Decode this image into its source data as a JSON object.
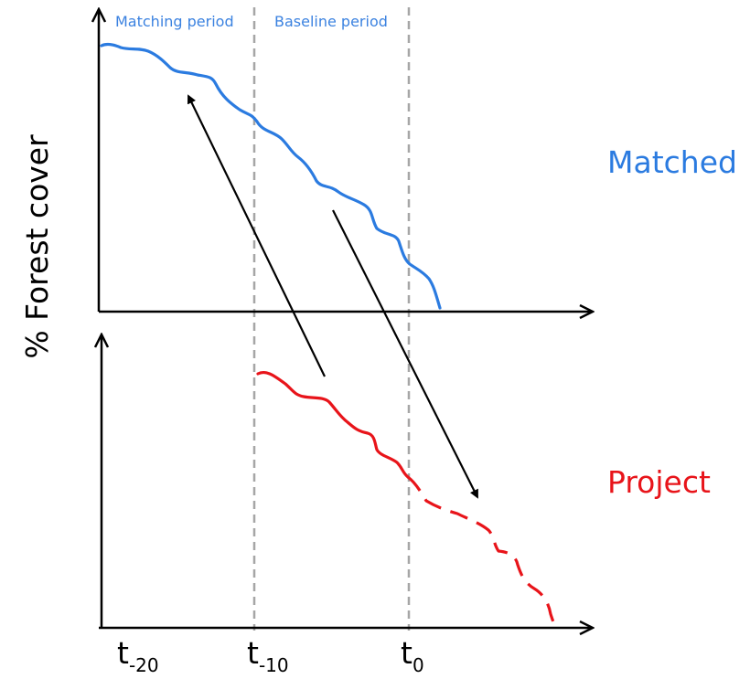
{
  "figure": {
    "y_axis_label": "% Forest cover",
    "period_labels": {
      "matching": "Matching period",
      "baseline": "Baseline period"
    },
    "series": {
      "matched": {
        "label": "Matched",
        "color": "#2b7be0"
      },
      "project": {
        "label": "Project",
        "color": "#e8141a"
      }
    },
    "time_ticks": [
      {
        "base": "t",
        "sub": "-20"
      },
      {
        "base": "t",
        "sub": "-10"
      },
      {
        "base": "t",
        "sub": "0"
      }
    ],
    "divider_color": "#a6a6a6"
  }
}
